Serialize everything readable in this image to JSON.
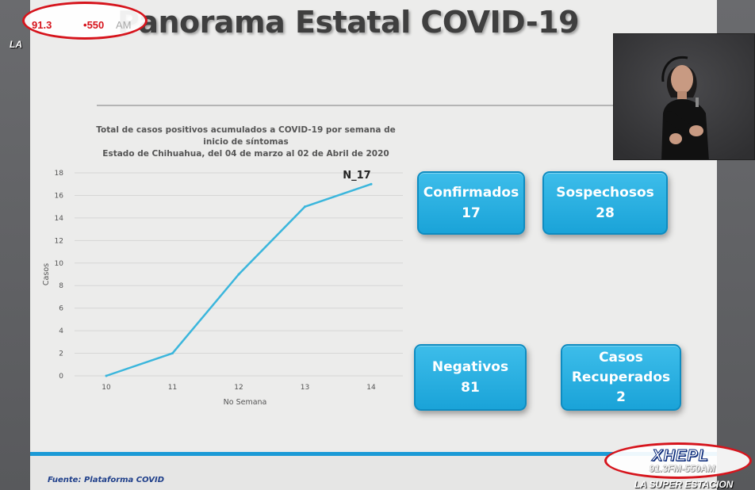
{
  "slide": {
    "title": "Panorama Estatal COVID-19",
    "source": "Fuente: Plataforma COVID"
  },
  "chart_data": {
    "type": "line",
    "title_lines": [
      "Total de casos positivos acumulados a COVID-19 por semana de",
      "inicio de síntomas",
      "Estado de Chihuahua, del 04 de marzo al 02 de Abril de 2020"
    ],
    "xlabel": "No Semana",
    "ylabel": "Casos",
    "x": [
      10,
      11,
      12,
      13,
      14
    ],
    "y": [
      0,
      2,
      9,
      15,
      17
    ],
    "yticks": [
      0,
      2,
      4,
      6,
      8,
      10,
      12,
      14,
      16,
      18
    ],
    "ylim": [
      0,
      18
    ],
    "grid": true,
    "annotation": "N_17",
    "line_color": "#3bb6dc"
  },
  "kpis": [
    {
      "label": "Confirmados",
      "value": "17"
    },
    {
      "label": "Sospechosos",
      "value": "28"
    },
    {
      "label": "Negativos",
      "value": "81"
    },
    {
      "label_lines": [
        "Casos",
        "Recuperados"
      ],
      "value": "2"
    }
  ],
  "logo_top": {
    "freq_fm": "91.3",
    "freq_am": "550",
    "freq_am_suffix": "AM",
    "tagline": "LA"
  },
  "logo_bottom": {
    "name": "XHEPL",
    "freq": "91.3FM-550AM",
    "tagline": "LA SUPER ESTACION"
  },
  "colors": {
    "accent_blue": "#1aa3d8",
    "brand_red": "#d6141c",
    "footer_blue": "#1b9ad6"
  }
}
